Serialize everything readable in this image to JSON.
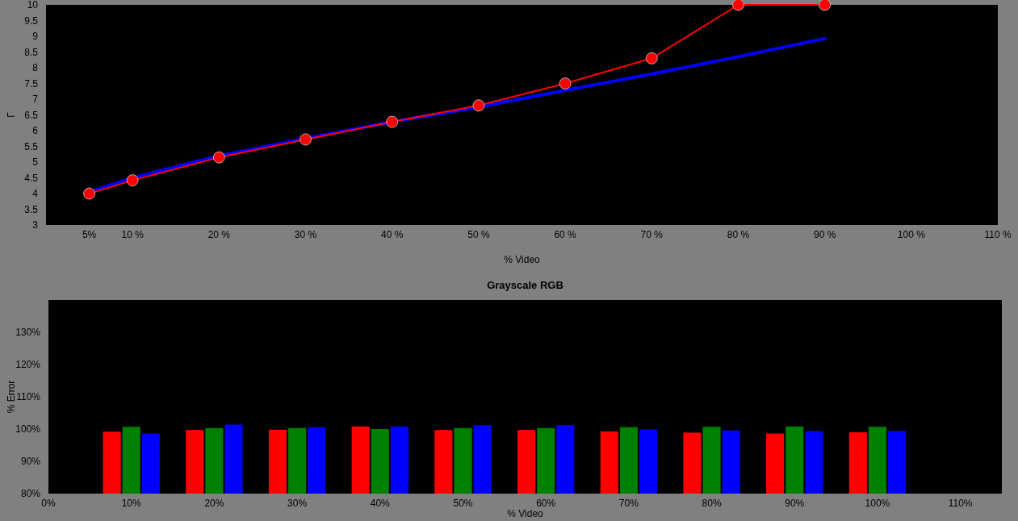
{
  "chart_data": [
    {
      "type": "line",
      "xlabel": "% Video",
      "ylabel": "Γ",
      "x": [
        5,
        10,
        20,
        30,
        40,
        50,
        60,
        70,
        80,
        90
      ],
      "xlim": [
        0,
        110
      ],
      "xticks": [
        {
          "value": 5,
          "label": "5%"
        },
        {
          "value": 10,
          "label": "10 %"
        },
        {
          "value": 20,
          "label": "20 %"
        },
        {
          "value": 30,
          "label": "30 %"
        },
        {
          "value": 40,
          "label": "40 %"
        },
        {
          "value": 50,
          "label": "50 %"
        },
        {
          "value": 60,
          "label": "60 %"
        },
        {
          "value": 70,
          "label": "70 %"
        },
        {
          "value": 80,
          "label": "80 %"
        },
        {
          "value": 90,
          "label": "90 %"
        },
        {
          "value": 100,
          "label": "100 %"
        },
        {
          "value": 110,
          "label": "110 %"
        }
      ],
      "ylim": [
        3,
        10
      ],
      "yticks": [
        3,
        3.5,
        4,
        4.5,
        5,
        5.5,
        6,
        6.5,
        7,
        7.5,
        8,
        8.5,
        9,
        9.5,
        10
      ],
      "series": [
        {
          "color": "#0000ff",
          "marker": "none",
          "values": [
            4.05,
            4.5,
            5.2,
            5.75,
            6.28,
            6.75,
            7.28,
            7.8,
            8.35,
            8.93
          ]
        },
        {
          "color": "#ff0000",
          "marker": "circle",
          "values": [
            4.0,
            4.42,
            5.15,
            5.72,
            6.28,
            6.8,
            7.5,
            8.3,
            10,
            10
          ]
        }
      ],
      "grid": false
    },
    {
      "type": "bar",
      "title": "Grayscale RGB",
      "xlabel": "% Video",
      "ylabel": "% Error",
      "x": [
        10,
        20,
        30,
        40,
        50,
        60,
        70,
        80,
        90,
        100
      ],
      "xlim": [
        0,
        115
      ],
      "xticks": [
        {
          "value": 0,
          "label": "0%"
        },
        {
          "value": 10,
          "label": "10%"
        },
        {
          "value": 20,
          "label": "20%"
        },
        {
          "value": 30,
          "label": "30%"
        },
        {
          "value": 40,
          "label": "40%"
        },
        {
          "value": 50,
          "label": "50%"
        },
        {
          "value": 60,
          "label": "60%"
        },
        {
          "value": 70,
          "label": "70%"
        },
        {
          "value": 80,
          "label": "80%"
        },
        {
          "value": 90,
          "label": "90%"
        },
        {
          "value": 100,
          "label": "100%"
        },
        {
          "value": 110,
          "label": "110%"
        }
      ],
      "ylim": [
        80,
        140
      ],
      "yticks": [
        {
          "value": 80,
          "label": "80%"
        },
        {
          "value": 90,
          "label": "90%"
        },
        {
          "value": 100,
          "label": "100%"
        },
        {
          "value": 110,
          "label": "110%"
        },
        {
          "value": 120,
          "label": "120%"
        },
        {
          "value": 130,
          "label": "130%"
        }
      ],
      "series": [
        {
          "color": "#ff0000",
          "values": [
            99.2,
            99.7,
            99.8,
            100.8,
            99.7,
            99.7,
            99.3,
            98.9,
            98.6,
            99.0
          ]
        },
        {
          "color": "#008000",
          "values": [
            100.7,
            100.3,
            100.3,
            100.0,
            100.3,
            100.3,
            100.6,
            100.7,
            100.8,
            100.7
          ]
        },
        {
          "color": "#0000ff",
          "values": [
            98.6,
            101.4,
            100.6,
            100.8,
            101.2,
            101.2,
            99.9,
            99.6,
            99.4,
            99.4
          ]
        }
      ],
      "grid": false
    }
  ]
}
